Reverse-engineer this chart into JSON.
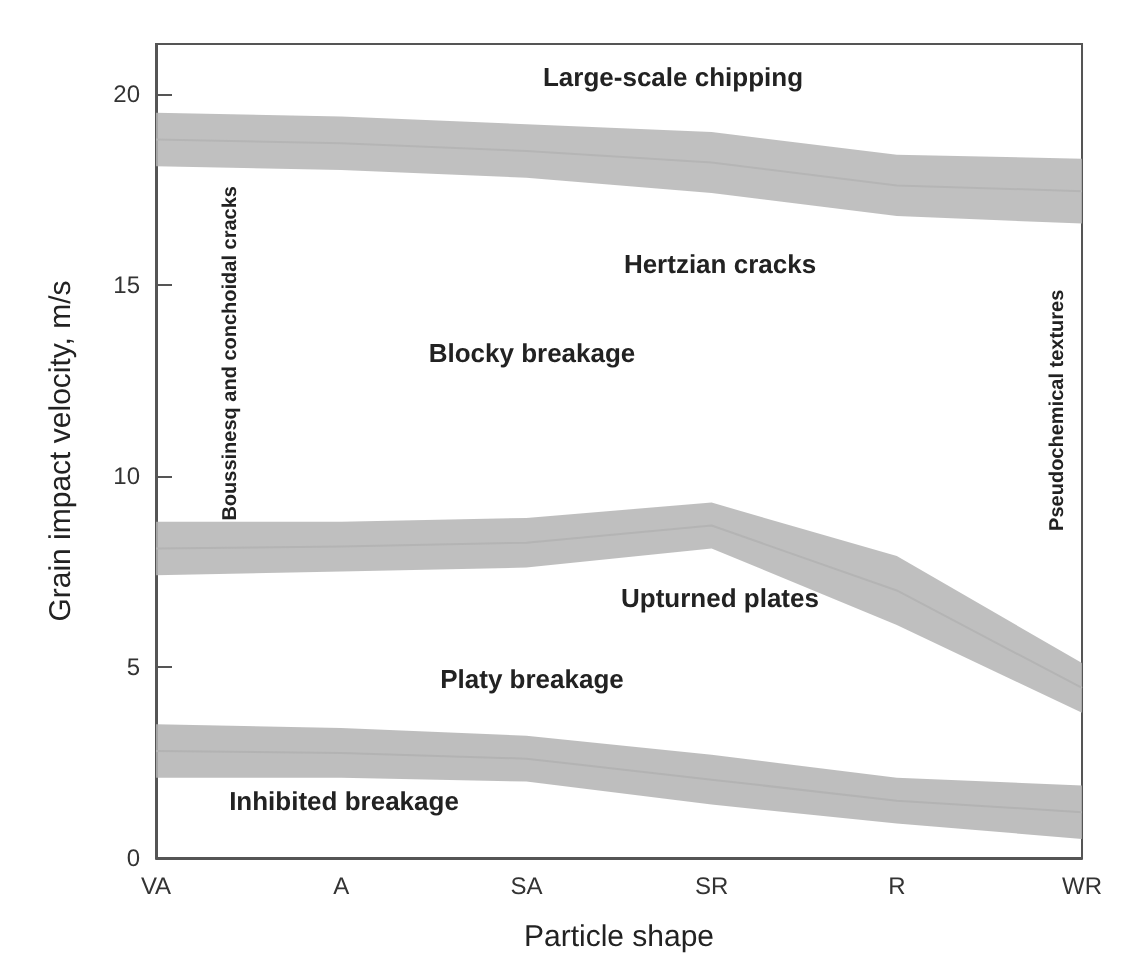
{
  "chart_data": {
    "type": "line",
    "xlabel": "Particle shape",
    "ylabel": "Grain impact velocity, m/s",
    "categories": [
      "VA",
      "A",
      "SA",
      "SR",
      "R",
      "WR"
    ],
    "series": [
      {
        "color": "#b5b5b5",
        "values": [
          18.8,
          18.7,
          18.5,
          18.2,
          17.6,
          17.45
        ],
        "lower": [
          18.1,
          18.0,
          17.8,
          17.4,
          16.8,
          16.6
        ],
        "upper": [
          19.5,
          19.4,
          19.2,
          19.0,
          18.4,
          18.3
        ]
      },
      {
        "color": "#b4b4b4",
        "values": [
          8.1,
          8.15,
          8.25,
          8.7,
          7.0,
          4.45
        ],
        "lower": [
          7.4,
          7.5,
          7.6,
          8.1,
          6.1,
          3.8
        ],
        "upper": [
          8.8,
          8.8,
          8.9,
          9.3,
          7.9,
          5.1
        ]
      },
      {
        "color": "#b3b3b3",
        "values": [
          2.8,
          2.75,
          2.6,
          2.05,
          1.5,
          1.2
        ],
        "lower": [
          2.1,
          2.1,
          2.0,
          1.4,
          0.9,
          0.5
        ],
        "upper": [
          3.5,
          3.4,
          3.2,
          2.7,
          2.1,
          1.9
        ]
      }
    ],
    "ylim": [
      0,
      21.3
    ],
    "yticks": [
      0,
      5,
      10,
      15,
      20
    ],
    "grid": false,
    "annotations": [
      "Large-scale chipping",
      "Hertzian cracks",
      "Blocky breakage",
      "Boussinesq and conchoidal cracks",
      "Pseudochemical textures",
      "Upturned plates",
      "Platy breakage",
      "Inhibited breakage"
    ]
  }
}
